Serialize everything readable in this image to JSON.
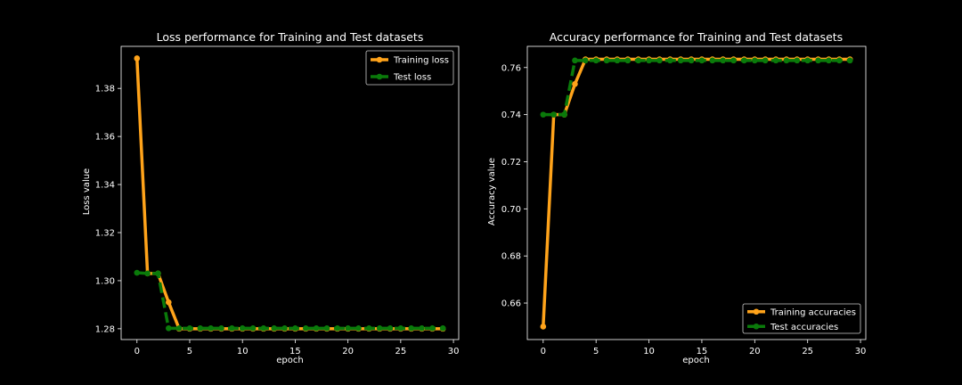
{
  "chart_data": [
    {
      "type": "line",
      "title": "Loss performance for Training and Test datasets",
      "xlabel": "epoch",
      "ylabel": "Loss value",
      "xlim": [
        -1.5,
        30.5
      ],
      "ylim": [
        1.2755,
        1.3975
      ],
      "xticks": [
        0,
        5,
        10,
        15,
        20,
        25,
        30
      ],
      "yticks": [
        1.28,
        1.3,
        1.32,
        1.34,
        1.36,
        1.38
      ],
      "ytick_labels": [
        "1.28",
        "1.30",
        "1.32",
        "1.34",
        "1.36",
        "1.38"
      ],
      "legend_position": "top-right",
      "grid": false,
      "x": [
        0,
        1,
        2,
        3,
        4,
        5,
        6,
        7,
        8,
        9,
        10,
        11,
        12,
        13,
        14,
        15,
        16,
        17,
        18,
        19,
        20,
        21,
        22,
        23,
        24,
        25,
        26,
        27,
        28,
        29
      ],
      "series": [
        {
          "name": "Training loss",
          "color": "#ffa31a",
          "style": "solid",
          "values": [
            1.3925,
            1.303,
            1.303,
            1.291,
            1.28,
            1.28,
            1.28,
            1.28,
            1.28,
            1.28,
            1.28,
            1.28,
            1.28,
            1.28,
            1.28,
            1.28,
            1.28,
            1.28,
            1.28,
            1.28,
            1.28,
            1.28,
            1.28,
            1.28,
            1.28,
            1.28,
            1.28,
            1.28,
            1.28,
            1.28
          ]
        },
        {
          "name": "Test loss",
          "color": "#0a7a0a",
          "style": "dashed",
          "values": [
            1.3033,
            1.303,
            1.303,
            1.2802,
            1.2802,
            1.2802,
            1.2802,
            1.2802,
            1.2802,
            1.2802,
            1.2802,
            1.2802,
            1.2802,
            1.2802,
            1.2802,
            1.2802,
            1.2802,
            1.2802,
            1.2802,
            1.2802,
            1.2802,
            1.2802,
            1.2802,
            1.2802,
            1.2802,
            1.2802,
            1.2802,
            1.2802,
            1.2802,
            1.2802
          ]
        }
      ]
    },
    {
      "type": "line",
      "title": "Accuracy performance for Training and Test datasets",
      "xlabel": "epoch",
      "ylabel": "Accuracy value",
      "xlim": [
        -1.5,
        30.5
      ],
      "ylim": [
        0.6445,
        0.769
      ],
      "xticks": [
        0,
        5,
        10,
        15,
        20,
        25,
        30
      ],
      "yticks": [
        0.66,
        0.68,
        0.7,
        0.72,
        0.74,
        0.76
      ],
      "ytick_labels": [
        "0.66",
        "0.68",
        "0.70",
        "0.72",
        "0.74",
        "0.76"
      ],
      "legend_position": "bottom-right",
      "grid": false,
      "x": [
        0,
        1,
        2,
        3,
        4,
        5,
        6,
        7,
        8,
        9,
        10,
        11,
        12,
        13,
        14,
        15,
        16,
        17,
        18,
        19,
        20,
        21,
        22,
        23,
        24,
        25,
        26,
        27,
        28,
        29
      ],
      "series": [
        {
          "name": "Training accuracies",
          "color": "#ffa31a",
          "style": "solid",
          "values": [
            0.65,
            0.74,
            0.74,
            0.753,
            0.7635,
            0.7635,
            0.7635,
            0.7635,
            0.7635,
            0.7635,
            0.7635,
            0.7635,
            0.7635,
            0.7635,
            0.7635,
            0.7635,
            0.7635,
            0.7635,
            0.7635,
            0.7635,
            0.7635,
            0.7635,
            0.7635,
            0.7635,
            0.7635,
            0.7635,
            0.7635,
            0.7635,
            0.7635,
            0.7635
          ]
        },
        {
          "name": "Test accuracies",
          "color": "#0a7a0a",
          "style": "dashed",
          "values": [
            0.74,
            0.74,
            0.74,
            0.763,
            0.763,
            0.763,
            0.763,
            0.763,
            0.763,
            0.763,
            0.763,
            0.763,
            0.763,
            0.763,
            0.763,
            0.763,
            0.763,
            0.763,
            0.763,
            0.763,
            0.763,
            0.763,
            0.763,
            0.763,
            0.763,
            0.763,
            0.763,
            0.763,
            0.763,
            0.763
          ]
        }
      ]
    }
  ]
}
